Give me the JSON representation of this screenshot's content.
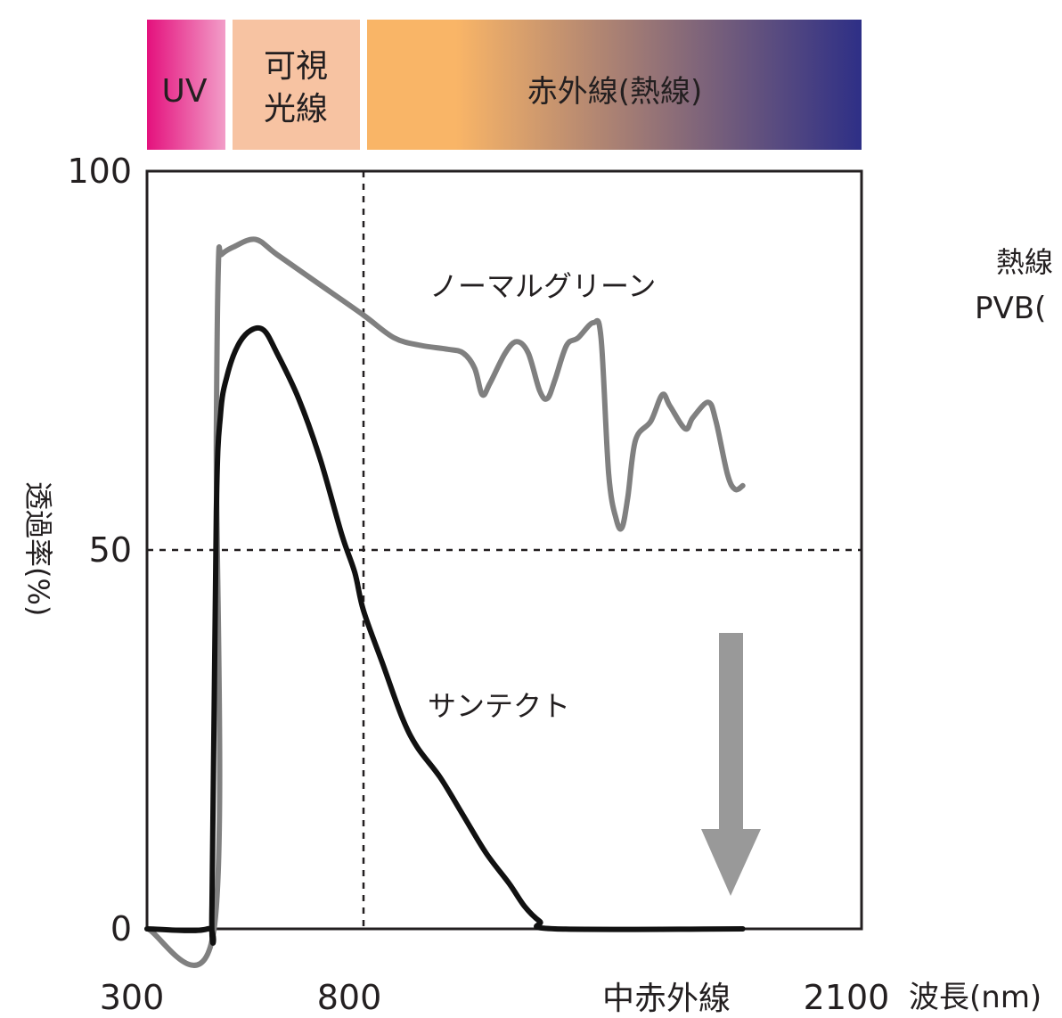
{
  "spectrum_bands": [
    {
      "label_lines": [
        "UV"
      ],
      "gradient": [
        "#e4117d",
        "#f29dc8"
      ]
    },
    {
      "label_lines": [
        "可視",
        "光線"
      ],
      "gradient": [
        "#f7c3a2",
        "#f7c3a2"
      ]
    },
    {
      "label_lines": [
        "赤外線(熱線)"
      ],
      "gradient": [
        "#f9b567",
        "#2e2f86"
      ]
    }
  ],
  "side_caption_lines": [
    "熱線",
    "PVB("
  ],
  "colors": {
    "normal_green": "#808080",
    "suntect": "#111111",
    "arrow": "#999999",
    "frame": "#231f20"
  },
  "chart_data": {
    "type": "line",
    "xlabel": "波長(nm)",
    "ylabel": "透過率(%)",
    "ylim": [
      0,
      100
    ],
    "y_ticks": [
      0,
      50,
      100
    ],
    "x_tick_labels": [
      "300",
      "800",
      "中赤外線",
      "2100"
    ],
    "x_axis_note": "non-linear wavelength axis",
    "reference_lines": [
      {
        "axis": "y",
        "value": 50,
        "style": "dashed"
      },
      {
        "axis": "x",
        "label": "800",
        "style": "dashed"
      }
    ],
    "x_domain": [
      300,
      2100
    ],
    "series": [
      {
        "name": "ノーマルグリーン",
        "color": "#808080",
        "points": [
          [
            300,
            0
          ],
          [
            455,
            0
          ],
          [
            460,
            65
          ],
          [
            465,
            88
          ],
          [
            472,
            89
          ],
          [
            500,
            90
          ],
          [
            550,
            91
          ],
          [
            600,
            89
          ],
          [
            700,
            85
          ],
          [
            800,
            81
          ],
          [
            880,
            78
          ],
          [
            950,
            77
          ],
          [
            1020,
            76.5
          ],
          [
            1060,
            76
          ],
          [
            1090,
            74
          ],
          [
            1110,
            70.5
          ],
          [
            1130,
            72
          ],
          [
            1170,
            76
          ],
          [
            1200,
            77.5
          ],
          [
            1230,
            76
          ],
          [
            1260,
            71
          ],
          [
            1280,
            70
          ],
          [
            1300,
            72.5
          ],
          [
            1330,
            77
          ],
          [
            1360,
            78
          ],
          [
            1400,
            80
          ],
          [
            1420,
            78
          ],
          [
            1440,
            60
          ],
          [
            1460,
            54
          ],
          [
            1475,
            53
          ],
          [
            1490,
            57
          ],
          [
            1510,
            64.5
          ],
          [
            1550,
            67
          ],
          [
            1580,
            70.5
          ],
          [
            1600,
            69
          ],
          [
            1640,
            66
          ],
          [
            1660,
            67.5
          ],
          [
            1700,
            69.5
          ],
          [
            1720,
            67
          ],
          [
            1750,
            60
          ],
          [
            1770,
            58
          ],
          [
            1790,
            58.5
          ]
        ]
      },
      {
        "name": "サンテクト",
        "color": "#111111",
        "points": [
          [
            300,
            0
          ],
          [
            440,
            0
          ],
          [
            450,
            3
          ],
          [
            460,
            55
          ],
          [
            470,
            68
          ],
          [
            485,
            73
          ],
          [
            510,
            77
          ],
          [
            540,
            79
          ],
          [
            570,
            79
          ],
          [
            600,
            76
          ],
          [
            650,
            70
          ],
          [
            700,
            62
          ],
          [
            750,
            52
          ],
          [
            780,
            47
          ],
          [
            800,
            42
          ],
          [
            850,
            35
          ],
          [
            900,
            28
          ],
          [
            940,
            24
          ],
          [
            1000,
            20
          ],
          [
            1060,
            15
          ],
          [
            1120,
            10
          ],
          [
            1180,
            6
          ],
          [
            1220,
            3
          ],
          [
            1260,
            1
          ],
          [
            1300,
            0
          ],
          [
            1790,
            0
          ]
        ]
      }
    ],
    "annotations": [
      {
        "text": "ノーマルグリーン"
      },
      {
        "text": "サンテクト"
      },
      {
        "type": "arrow",
        "direction": "down"
      }
    ]
  }
}
